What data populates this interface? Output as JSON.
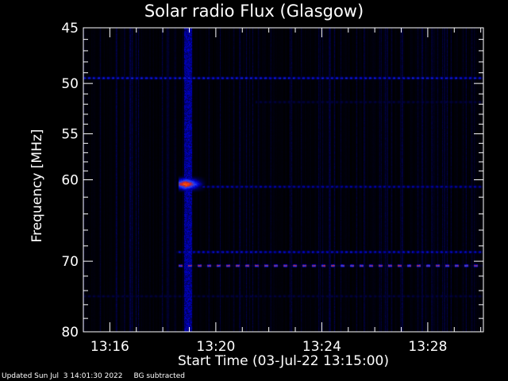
{
  "chart_data": {
    "type": "heatmap",
    "title": "Solar radio Flux (Glasgow)",
    "xlabel": "Start Time (03-Jul-22 13:15:00)",
    "ylabel": "Frequency [MHz]",
    "x_range_minutes_after_1315": [
      0,
      15.1
    ],
    "ylim": [
      45,
      80
    ],
    "y_scale": "log",
    "x_ticks": [
      {
        "minute": 1,
        "label": "13:16"
      },
      {
        "minute": 5,
        "label": "13:20"
      },
      {
        "minute": 9,
        "label": "13:24"
      },
      {
        "minute": 13,
        "label": "13:28"
      }
    ],
    "y_ticks": [
      {
        "value": 45,
        "label": "45"
      },
      {
        "value": 50,
        "label": "50"
      },
      {
        "value": 55,
        "label": "55"
      },
      {
        "value": 60,
        "label": "60"
      },
      {
        "value": 70,
        "label": "70"
      },
      {
        "value": 80,
        "label": "80"
      }
    ],
    "y_minor_ticks": [
      46,
      47,
      48,
      49,
      51,
      52,
      53,
      54,
      56,
      57,
      58,
      59,
      62,
      64,
      66,
      68,
      72,
      74,
      76,
      78
    ],
    "colormap": [
      "#000000",
      "#000044",
      "#0000cc",
      "#2244ff",
      "#cc2222",
      "#ff5500",
      "#ffaa44"
    ],
    "features": [
      {
        "kind": "burst",
        "t_start": 3.8,
        "t_end": 4.1,
        "f_low": 45,
        "f_high": 80,
        "intensity": 0.35
      },
      {
        "kind": "emission",
        "t_start": 3.6,
        "t_end": 4.7,
        "f_low": 59.5,
        "f_high": 61.5,
        "intensity": 1.0
      },
      {
        "kind": "band",
        "freq": 49.5,
        "t_start": 0,
        "t_end": 15.1,
        "intensity": 0.5
      },
      {
        "kind": "band",
        "freq": 60.8,
        "t_start": 4.5,
        "t_end": 15.1,
        "intensity": 0.4
      },
      {
        "kind": "band",
        "freq": 68.8,
        "t_start": 3.5,
        "t_end": 15.1,
        "intensity": 0.45
      },
      {
        "kind": "band",
        "freq": 70.6,
        "t_start": 3.6,
        "t_end": 15.1,
        "intensity": 0.85
      },
      {
        "kind": "band",
        "freq": 74.8,
        "t_start": 0,
        "t_end": 15.1,
        "intensity": 0.2
      },
      {
        "kind": "band",
        "freq": 51.8,
        "t_start": 6.5,
        "t_end": 15.1,
        "intensity": 0.2
      }
    ]
  },
  "footer": {
    "updated": "Updated Sun Jul  3 14:01:30 2022",
    "bg_note": "BG subtracted"
  }
}
